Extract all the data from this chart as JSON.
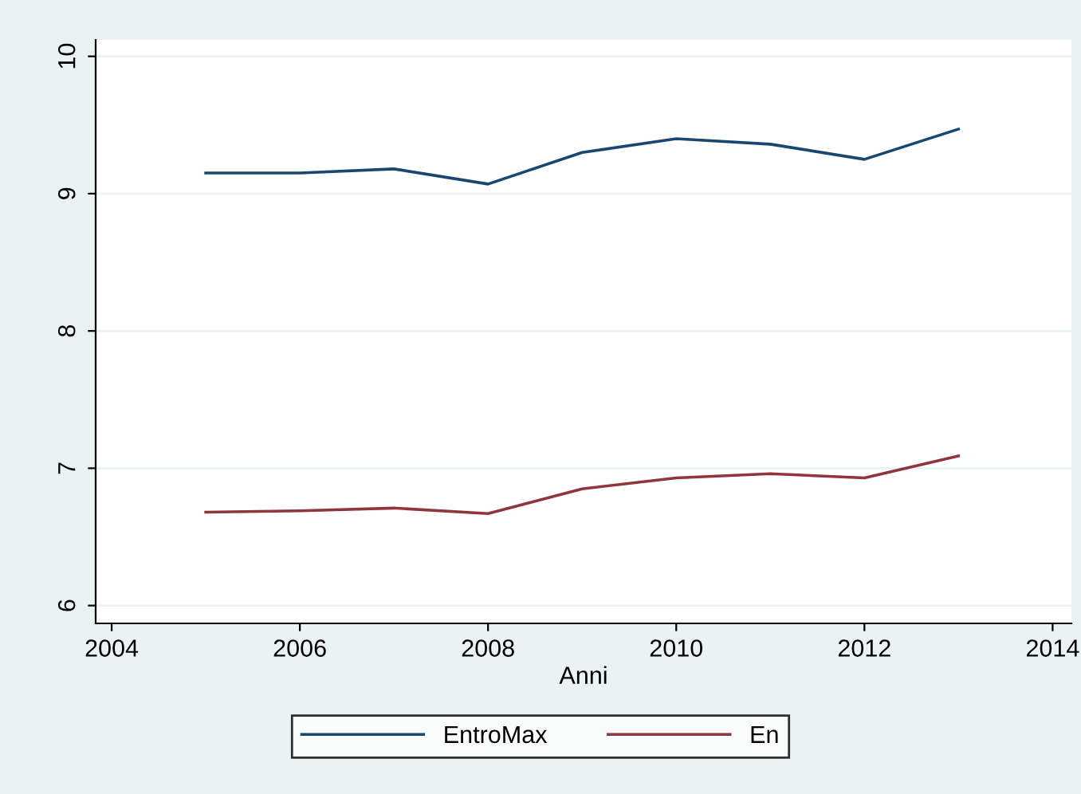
{
  "chart_data": {
    "type": "line",
    "xlabel": "Anni",
    "x": [
      2005,
      2006,
      2007,
      2008,
      2009,
      2010,
      2011,
      2012,
      2013
    ],
    "series": [
      {
        "name": "EntroMax",
        "color": "#1a476f",
        "values": [
          9.15,
          9.15,
          9.18,
          9.07,
          9.3,
          9.4,
          9.36,
          9.25,
          9.47
        ]
      },
      {
        "name": "En",
        "color": "#90353b",
        "values": [
          6.68,
          6.69,
          6.71,
          6.67,
          6.85,
          6.93,
          6.96,
          6.93,
          7.09
        ]
      }
    ],
    "xlim": [
      2003.83,
      2014.2
    ],
    "xticks": [
      2004,
      2006,
      2008,
      2010,
      2012,
      2014
    ],
    "ylim": [
      5.87,
      10.12
    ],
    "yticks": [
      6,
      7,
      8,
      9,
      10
    ],
    "grid": "y",
    "legend": "bottom",
    "marker": "none",
    "line_style": "solid"
  }
}
